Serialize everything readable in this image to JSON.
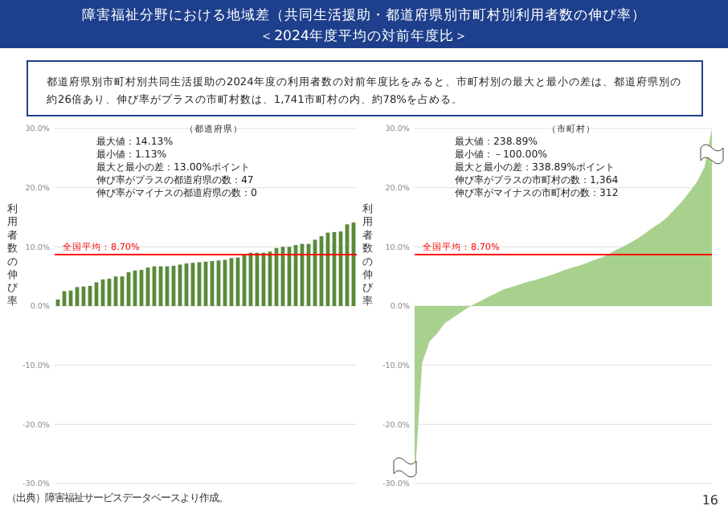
{
  "chart_data": [
    {
      "type": "other",
      "title": "障害福祉分野における地域差（共同生活援助・都道府県別市町村別利用者数の伸び率）",
      "subtitle": "＜2024年度平均の対前年度比＞",
      "annotations": [
        "都道府県別市町村別共同生活援助の2024年度の利用者数の対前年度比をみると、市町村別の最大と最小の差は、都道府県別の約26倍あり、伸び率がプラスの市町村数は、1,741市町村の内、約78%を占める。",
        "（出典）障害福祉サービスデータベースより作成。",
        "16"
      ]
    },
    {
      "type": "bar",
      "title": "（都道府県）",
      "ylabel": "利用者数の伸び率",
      "categories": [
        null,
        null,
        null,
        null,
        null,
        null,
        null,
        null,
        null,
        null,
        null,
        null,
        null,
        null,
        null,
        null,
        null,
        null,
        null,
        null,
        null,
        null,
        null,
        null,
        null,
        null,
        null,
        null,
        null,
        null,
        null,
        null,
        null,
        null,
        null,
        null,
        null,
        null,
        null,
        null,
        null,
        null,
        null,
        null,
        null,
        null,
        null
      ],
      "series": [
        {
          "color": "#5a8a3a",
          "values": [
            1.1,
            2.5,
            2.6,
            3.2,
            3.3,
            3.4,
            4.0,
            4.5,
            4.6,
            5.0,
            5.0,
            5.7,
            6.0,
            6.1,
            6.5,
            6.7,
            6.7,
            6.7,
            6.8,
            7.0,
            7.2,
            7.3,
            7.4,
            7.5,
            7.6,
            7.7,
            7.8,
            8.1,
            8.2,
            8.6,
            9.0,
            9.0,
            9.0,
            9.2,
            9.8,
            10.0,
            10.0,
            10.3,
            10.5,
            10.5,
            11.2,
            11.8,
            12.4,
            12.5,
            12.6,
            13.8,
            14.1
          ]
        }
      ],
      "ylim": [
        -30,
        30
      ],
      "yticks": [
        {
          "value": 30,
          "label": "30.0%"
        },
        {
          "value": 20,
          "label": "20.0%"
        },
        {
          "value": 10,
          "label": "10.0%"
        },
        {
          "value": 0,
          "label": "0.0%"
        },
        {
          "value": -10,
          "label": "-10.0%"
        },
        {
          "value": -20,
          "label": "-20.0%"
        },
        {
          "value": -30,
          "label": "-30.0%"
        }
      ],
      "grid": "y",
      "tick_labels": "y",
      "ref_lines": [
        {
          "axis": "y",
          "value": 8.7,
          "label": "全国平均：8.70%",
          "color": "#ff0000"
        }
      ],
      "annotations": [
        "最大値：14.13%",
        "最小値：1.13%",
        "最大と最小の差：13.00%ポイント",
        "伸び率がプラスの都道府県の数：47",
        "伸び率がマイナスの都道府県の数：0"
      ]
    },
    {
      "type": "area",
      "title": "（市町村）",
      "ylabel": "利用者数の伸び率",
      "categories": [
        null,
        null,
        null,
        null,
        null,
        null,
        null,
        null,
        null,
        null,
        null,
        null,
        null,
        null,
        null,
        null,
        null,
        null,
        null,
        null,
        null,
        null,
        null,
        null,
        null,
        null,
        null,
        null,
        null,
        null,
        null,
        null,
        null,
        null,
        null,
        null,
        null,
        null,
        null,
        null,
        null
      ],
      "series": [
        {
          "color": "#a9d18e",
          "values": [
            -30,
            -9.7,
            -6.0,
            -4.7,
            -3.0,
            -2.1,
            -1.3,
            -0.4,
            0.3,
            0.9,
            1.6,
            2.2,
            2.8,
            3.2,
            3.6,
            4.0,
            4.3,
            4.7,
            5.1,
            5.5,
            6.0,
            6.4,
            6.8,
            7.2,
            7.7,
            8.1,
            8.7,
            9.4,
            10.0,
            10.7,
            11.4,
            12.3,
            13.2,
            14.0,
            15.0,
            16.4,
            17.7,
            19.3,
            21.0,
            23.5,
            30
          ]
        }
      ],
      "ylim": [
        -30,
        30
      ],
      "yticks": [
        {
          "value": 30,
          "label": "30.0%"
        },
        {
          "value": 20,
          "label": "20.0%"
        },
        {
          "value": 10,
          "label": "10.0%"
        },
        {
          "value": 0,
          "label": "0.0%"
        },
        {
          "value": -10,
          "label": "-10.0%"
        },
        {
          "value": -20,
          "label": "-20.0%"
        },
        {
          "value": -30,
          "label": "-30.0%"
        }
      ],
      "grid": "y",
      "tick_labels": "y",
      "ref_lines": [
        {
          "axis": "y",
          "value": 8.7,
          "label": "全国平均：8.70%",
          "color": "#ff0000"
        }
      ],
      "annotations": [
        "最大値：238.89%",
        "最小値：－100.00%",
        "最大と最小の差：338.89%ポイント",
        "伸び率がプラスの市町村の数：1,364",
        "伸び率がマイナスの市町村の数：312"
      ]
    }
  ]
}
